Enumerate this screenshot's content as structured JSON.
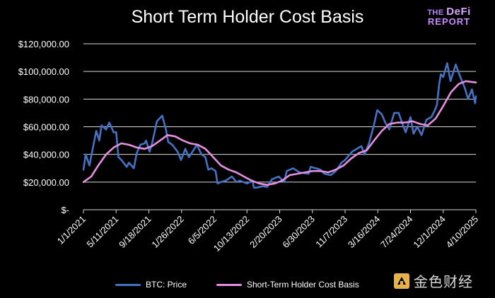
{
  "header": {
    "title": "Short Term Holder Cost Basis",
    "brand_line1_small": "THE ",
    "brand_line1_big": "DeFi",
    "brand_line2": "REPORT"
  },
  "watermark": {
    "text": "金色财经"
  },
  "colors": {
    "background": "#000000",
    "price": "#4472c4",
    "cost_basis": "#e48fe0",
    "grid": "#d9d9d9",
    "text": "#ffffff"
  },
  "chart_data": {
    "type": "line",
    "title": "Short Term Holder Cost Basis",
    "xlabel": "",
    "ylabel": "",
    "ylim": [
      0,
      120000
    ],
    "yticks": [
      0,
      20000,
      40000,
      60000,
      80000,
      100000,
      120000
    ],
    "ytick_labels": [
      "$-",
      "$20,000.00",
      "$40,000.00",
      "$60,000.00",
      "$80,000.00",
      "$100,000.00",
      "$120,000.00"
    ],
    "xlim": [
      "2021-01-01",
      "2025-04-10"
    ],
    "xtick_labels": [
      "1/1/2021",
      "5/11/2021",
      "9/18/2021",
      "1/26/2022",
      "6/5/2022",
      "10/13/2022",
      "2/20/2023",
      "6/30/2023",
      "11/7/2023",
      "3/16/2024",
      "7/24/2024",
      "12/1/2024",
      "4/10/2025"
    ],
    "xtick_dates": [
      "2021-01-01",
      "2021-05-11",
      "2021-09-18",
      "2022-01-26",
      "2022-06-05",
      "2022-10-13",
      "2023-02-20",
      "2023-06-30",
      "2023-11-07",
      "2024-03-16",
      "2024-07-24",
      "2024-12-01",
      "2025-04-10"
    ],
    "grid": true,
    "legend": "bottom",
    "series": [
      {
        "name": "BTC: Price",
        "x": [
          "2021-01-01",
          "2021-01-10",
          "2021-01-25",
          "2021-02-10",
          "2021-02-21",
          "2021-03-05",
          "2021-03-14",
          "2021-04-01",
          "2021-04-14",
          "2021-05-01",
          "2021-05-11",
          "2021-05-20",
          "2021-06-01",
          "2021-06-22",
          "2021-07-01",
          "2021-07-20",
          "2021-08-01",
          "2021-08-15",
          "2021-09-01",
          "2021-09-07",
          "2021-09-21",
          "2021-10-01",
          "2021-10-20",
          "2021-11-10",
          "2021-11-25",
          "2021-12-04",
          "2021-12-20",
          "2022-01-10",
          "2022-01-24",
          "2022-02-10",
          "2022-02-24",
          "2022-03-28",
          "2022-04-15",
          "2022-05-01",
          "2022-05-12",
          "2022-05-25",
          "2022-06-10",
          "2022-06-18",
          "2022-07-01",
          "2022-07-20",
          "2022-08-14",
          "2022-09-01",
          "2022-09-15",
          "2022-10-13",
          "2022-11-05",
          "2022-11-09",
          "2022-11-21",
          "2022-12-15",
          "2023-01-01",
          "2023-01-20",
          "2023-02-16",
          "2023-03-10",
          "2023-03-20",
          "2023-04-14",
          "2023-05-10",
          "2023-06-15",
          "2023-06-23",
          "2023-07-13",
          "2023-08-01",
          "2023-08-17",
          "2023-09-11",
          "2023-10-01",
          "2023-10-24",
          "2023-11-07",
          "2023-12-05",
          "2024-01-11",
          "2024-01-23",
          "2024-02-10",
          "2024-02-28",
          "2024-03-14",
          "2024-04-01",
          "2024-04-15",
          "2024-05-01",
          "2024-05-20",
          "2024-06-07",
          "2024-06-24",
          "2024-07-05",
          "2024-07-24",
          "2024-08-05",
          "2024-08-20",
          "2024-09-06",
          "2024-09-25",
          "2024-10-15",
          "2024-10-29",
          "2024-11-06",
          "2024-11-15",
          "2024-11-22",
          "2024-12-01",
          "2024-12-17",
          "2024-12-30",
          "2025-01-20",
          "2025-02-05",
          "2025-02-25",
          "2025-03-10",
          "2025-03-25",
          "2025-04-07",
          "2025-04-10"
        ],
        "y": [
          29000,
          40000,
          32000,
          47000,
          57000,
          50000,
          61000,
          58000,
          63000,
          56000,
          56000,
          38000,
          36000,
          31000,
          34000,
          30000,
          41000,
          47000,
          48000,
          50000,
          42000,
          48000,
          64000,
          68000,
          58000,
          49000,
          47000,
          42000,
          36000,
          44000,
          38000,
          47000,
          40000,
          38000,
          29000,
          30000,
          28000,
          19000,
          20000,
          21000,
          24000,
          20000,
          21000,
          19000,
          21000,
          16000,
          16000,
          17000,
          16500,
          22000,
          24000,
          20000,
          28000,
          30000,
          27000,
          26000,
          31000,
          30000,
          29000,
          26000,
          25000,
          28000,
          34000,
          36000,
          42000,
          46000,
          40000,
          48000,
          60000,
          72000,
          69000,
          63000,
          58000,
          70000,
          70000,
          61000,
          56000,
          67000,
          55000,
          60000,
          54000,
          65000,
          67000,
          72000,
          76000,
          91000,
          98000,
          96000,
          106000,
          93000,
          105000,
          97000,
          88000,
          80000,
          87000,
          77000,
          82000
        ]
      },
      {
        "name": "Short-Term Holder Cost Basis",
        "x": [
          "2021-01-01",
          "2021-02-01",
          "2021-03-01",
          "2021-04-01",
          "2021-05-01",
          "2021-06-01",
          "2021-07-01",
          "2021-08-01",
          "2021-09-01",
          "2021-10-01",
          "2021-11-01",
          "2021-12-01",
          "2022-01-01",
          "2022-02-01",
          "2022-03-01",
          "2022-04-01",
          "2022-05-01",
          "2022-06-01",
          "2022-07-01",
          "2022-08-01",
          "2022-09-01",
          "2022-10-01",
          "2022-11-01",
          "2022-12-01",
          "2023-01-01",
          "2023-02-01",
          "2023-03-01",
          "2023-04-01",
          "2023-05-01",
          "2023-06-01",
          "2023-07-01",
          "2023-08-01",
          "2023-09-01",
          "2023-10-01",
          "2023-11-01",
          "2023-12-01",
          "2024-01-01",
          "2024-02-01",
          "2024-03-01",
          "2024-04-01",
          "2024-05-01",
          "2024-06-01",
          "2024-07-01",
          "2024-08-01",
          "2024-09-01",
          "2024-10-01",
          "2024-11-01",
          "2024-12-01",
          "2025-01-01",
          "2025-02-01",
          "2025-03-01",
          "2025-04-10"
        ],
        "y": [
          20000,
          24000,
          32000,
          40000,
          45000,
          48000,
          47000,
          45000,
          44000,
          46000,
          50000,
          54000,
          53000,
          50000,
          48000,
          47000,
          44000,
          38000,
          32000,
          29000,
          27000,
          24000,
          21000,
          19000,
          18000,
          19000,
          21000,
          25000,
          26000,
          27000,
          28000,
          28000,
          27000,
          29000,
          32000,
          37000,
          41000,
          43000,
          50000,
          57000,
          62000,
          63000,
          63000,
          64000,
          62000,
          61000,
          66000,
          75000,
          85000,
          91000,
          93000,
          92000
        ]
      }
    ]
  }
}
